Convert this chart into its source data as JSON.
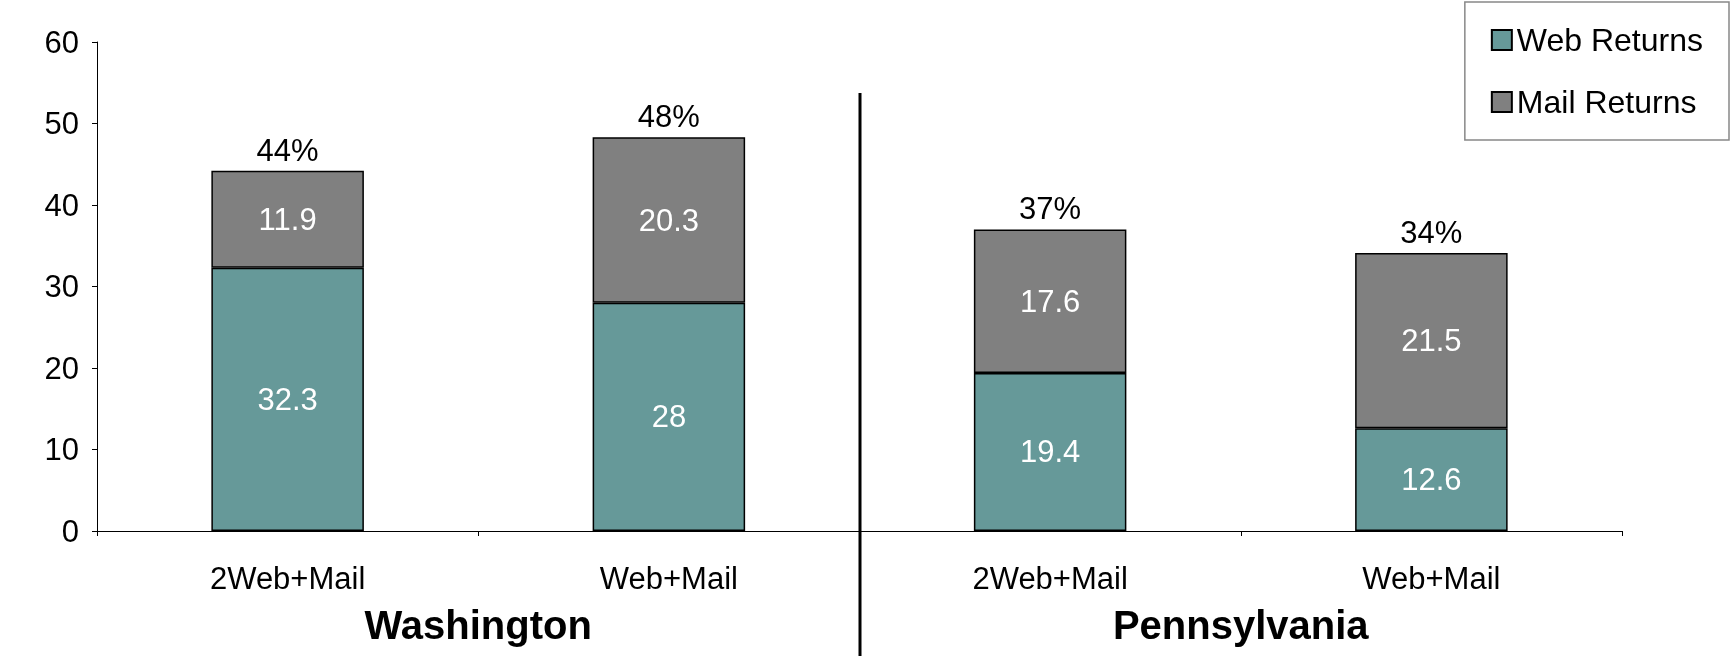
{
  "chart_data": {
    "type": "bar",
    "stacked": true,
    "categories": [
      "2Web+Mail",
      "Web+Mail",
      "2Web+Mail",
      "Web+Mail"
    ],
    "series": [
      {
        "name": "Web Returns",
        "color": "#669999",
        "values": [
          32.3,
          28,
          19.4,
          12.6
        ]
      },
      {
        "name": "Mail Returns",
        "color": "#808080",
        "values": [
          11.9,
          20.3,
          17.6,
          21.5
        ]
      }
    ],
    "ylim": [
      0,
      60
    ],
    "yticks": [
      0,
      10,
      20,
      30,
      40,
      50,
      60
    ],
    "data_labels": true,
    "totals": [
      "44%",
      "48%",
      "37%",
      "34%"
    ],
    "annotations": [
      "Washington",
      "Pennsylvania"
    ],
    "legend": "top right",
    "grid": false
  }
}
